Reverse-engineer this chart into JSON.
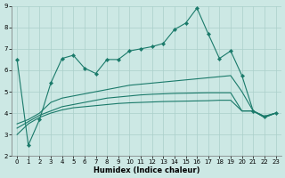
{
  "background_color": "#cce8e4",
  "grid_color": "#aacfca",
  "line_color": "#1a7a6a",
  "xlabel": "Humidex (Indice chaleur)",
  "xlim": [
    -0.5,
    23.5
  ],
  "ylim": [
    2,
    9
  ],
  "yticks": [
    2,
    3,
    4,
    5,
    6,
    7,
    8,
    9
  ],
  "xticks": [
    0,
    1,
    2,
    3,
    4,
    5,
    6,
    7,
    8,
    9,
    10,
    11,
    12,
    13,
    14,
    15,
    16,
    17,
    18,
    19,
    20,
    21,
    22,
    23
  ],
  "series1_x": [
    0,
    1,
    2,
    3,
    4,
    5,
    6,
    7,
    8,
    9,
    10,
    11,
    12,
    13,
    14,
    15,
    16,
    17,
    18,
    19,
    20,
    21,
    22,
    23
  ],
  "series1_y": [
    6.5,
    2.5,
    3.7,
    5.4,
    6.55,
    6.7,
    6.1,
    5.85,
    6.5,
    6.5,
    6.9,
    7.0,
    7.1,
    7.25,
    7.9,
    8.2,
    8.9,
    7.7,
    6.55,
    6.9,
    5.75,
    4.1,
    3.85,
    4.0
  ],
  "series2_x": [
    0,
    1,
    2,
    3,
    4,
    5,
    6,
    7,
    8,
    9,
    10,
    11,
    12,
    13,
    14,
    15,
    16,
    17,
    18,
    19,
    20,
    21,
    22,
    23
  ],
  "series2_y": [
    3.5,
    3.7,
    4.0,
    4.5,
    4.7,
    4.8,
    4.9,
    5.0,
    5.1,
    5.2,
    5.3,
    5.35,
    5.4,
    5.45,
    5.5,
    5.55,
    5.6,
    5.65,
    5.7,
    5.75,
    5.0,
    4.1,
    3.85,
    4.0
  ],
  "series3_x": [
    0,
    1,
    2,
    3,
    4,
    5,
    6,
    7,
    8,
    9,
    10,
    11,
    12,
    13,
    14,
    15,
    16,
    17,
    18,
    19,
    20,
    21,
    22,
    23
  ],
  "series3_y": [
    3.3,
    3.6,
    3.9,
    4.1,
    4.3,
    4.4,
    4.5,
    4.6,
    4.7,
    4.75,
    4.8,
    4.85,
    4.88,
    4.9,
    4.92,
    4.93,
    4.94,
    4.95,
    4.95,
    4.95,
    4.1,
    4.1,
    3.8,
    4.0
  ],
  "series4_x": [
    0,
    1,
    2,
    3,
    4,
    5,
    6,
    7,
    8,
    9,
    10,
    11,
    12,
    13,
    14,
    15,
    16,
    17,
    18,
    19,
    20,
    21,
    22,
    23
  ],
  "series4_y": [
    3.0,
    3.5,
    3.8,
    4.0,
    4.15,
    4.25,
    4.3,
    4.35,
    4.4,
    4.45,
    4.48,
    4.5,
    4.52,
    4.54,
    4.55,
    4.56,
    4.57,
    4.58,
    4.6,
    4.6,
    4.1,
    4.1,
    3.8,
    4.0
  ]
}
